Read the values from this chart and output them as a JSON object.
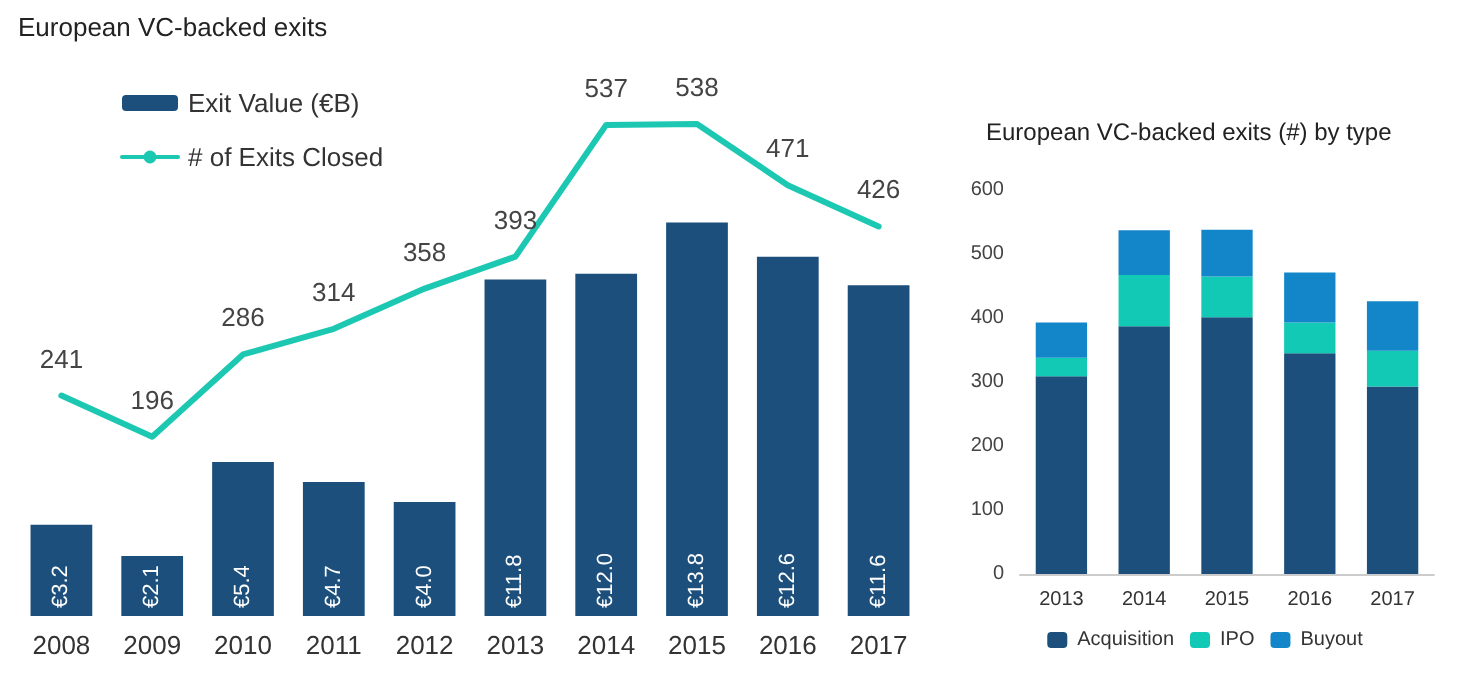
{
  "chart_data": [
    {
      "type": "bar",
      "title": "European VC-backed exits",
      "categories": [
        "2008",
        "2009",
        "2010",
        "2011",
        "2012",
        "2013",
        "2014",
        "2015",
        "2016",
        "2017"
      ],
      "series": [
        {
          "name": "Exit Value (€B)",
          "color": "#1c4f7b",
          "values": [
            3.2,
            2.1,
            5.4,
            4.7,
            4.0,
            11.8,
            12.0,
            13.8,
            12.6,
            11.6
          ],
          "value_labels": [
            "€3.2",
            "€2.1",
            "€5.4",
            "€4.7",
            "€4.0",
            "€11.8",
            "€12.0",
            "€13.8",
            "€12.6",
            "€11.6"
          ]
        },
        {
          "name": "# of Exits Closed",
          "type": "line",
          "axis": "y2",
          "color": "#1cc8b2",
          "values": [
            241,
            196,
            286,
            314,
            358,
            393,
            537,
            538,
            471,
            426
          ],
          "value_labels": [
            "241",
            "196",
            "286",
            "314",
            "358",
            "393",
            "537",
            "538",
            "471",
            "426"
          ]
        }
      ],
      "tick_labels": "x",
      "legend": "top left",
      "marker": "none",
      "line_style": "solid",
      "grid": false
    },
    {
      "type": "bar",
      "title": "European VC-backed exits (#) by type",
      "categories": [
        "2013",
        "2014",
        "2015",
        "2016",
        "2017"
      ],
      "stacked": true,
      "series": [
        {
          "name": "Acquisition",
          "color": "#1c4f7b",
          "values": [
            309,
            387,
            401,
            345,
            293
          ]
        },
        {
          "name": "IPO",
          "color": "#12c9b5",
          "values": [
            29,
            80,
            64,
            48,
            56
          ]
        },
        {
          "name": "Buyout",
          "color": "#1386c9",
          "values": [
            55,
            70,
            73,
            78,
            77
          ]
        }
      ],
      "ylim": [
        0,
        600
      ],
      "yticks": [
        0,
        100,
        200,
        300,
        400,
        500,
        600
      ],
      "legend": "bottom",
      "grid": false
    }
  ]
}
